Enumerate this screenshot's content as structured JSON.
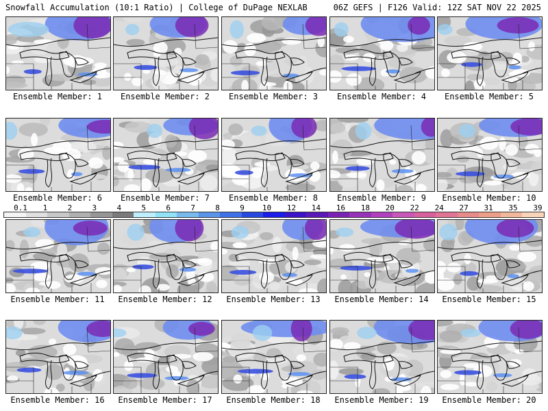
{
  "header": {
    "left": "Snowfall Accumulation (10:1 Ratio) | College of DuPage NEXLAB",
    "right": "06Z GEFS | F126 Valid: 12Z SAT NOV 22 2025"
  },
  "colorbar": {
    "ticks": [
      "0.1",
      "1",
      "2",
      "3",
      "4",
      "5",
      "6",
      "7",
      "8",
      "9",
      "10",
      "12",
      "14",
      "16",
      "18",
      "20",
      "22",
      "24",
      "27",
      "31",
      "35",
      "39"
    ],
    "colors": [
      "#f4f4f4",
      "#e0e0e0",
      "#c8c8c8",
      "#b0b0b0",
      "#969696",
      "#7a7a7a",
      "#bfefff",
      "#8fe3f5",
      "#78b9ee",
      "#5a94e8",
      "#4070e6",
      "#2848e0",
      "#1a1ee8",
      "#3c14c8",
      "#5a1ab8",
      "#7a22b4",
      "#9632b8",
      "#b040be",
      "#c858b8",
      "#d8609c",
      "#e07494",
      "#e68a8a",
      "#ec9e88",
      "#f2b89c",
      "#f8d4b8"
    ]
  },
  "panels": [
    {
      "label": "Ensemble Member: 1"
    },
    {
      "label": "Ensemble Member: 2"
    },
    {
      "label": "Ensemble Member: 3"
    },
    {
      "label": "Ensemble Member: 4"
    },
    {
      "label": "Ensemble Member: 5"
    },
    {
      "label": "Ensemble Member: 6"
    },
    {
      "label": "Ensemble Member: 7"
    },
    {
      "label": "Ensemble Member: 8"
    },
    {
      "label": "Ensemble Member: 9"
    },
    {
      "label": "Ensemble Member: 10"
    },
    {
      "label": "Ensemble Member: 11"
    },
    {
      "label": "Ensemble Member: 12"
    },
    {
      "label": "Ensemble Member: 13"
    },
    {
      "label": "Ensemble Member: 14"
    },
    {
      "label": "Ensemble Member: 15"
    },
    {
      "label": "Ensemble Member: 16"
    },
    {
      "label": "Ensemble Member: 17"
    },
    {
      "label": "Ensemble Member: 18"
    },
    {
      "label": "Ensemble Member: 19"
    },
    {
      "label": "Ensemble Member: 20"
    }
  ]
}
